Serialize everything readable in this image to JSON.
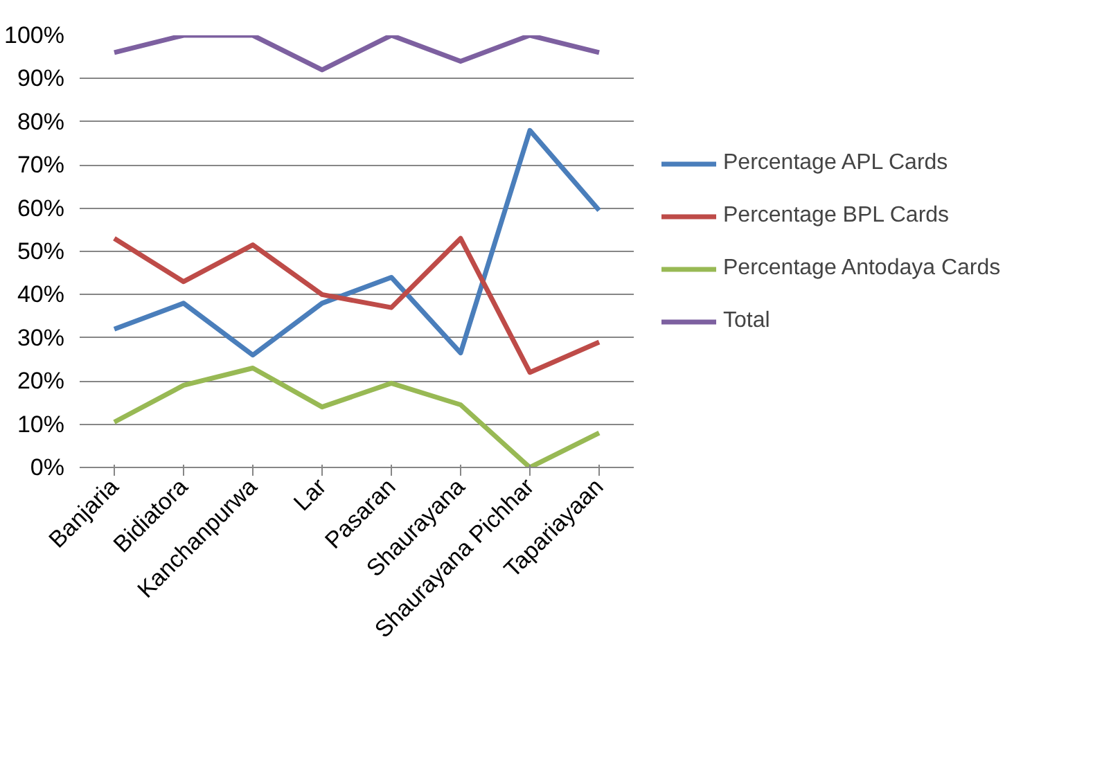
{
  "chart_data": {
    "type": "line",
    "categories": [
      "Banjaria",
      "Bidiatora",
      "Kanchanpurwa",
      "Lar",
      "Pasaran",
      "Shaurayana",
      "Shaurayana Pichhar",
      "Tapariayaan"
    ],
    "series": [
      {
        "name": "Percentage APL Cards",
        "color": "#4a7ebb",
        "values": [
          32,
          38,
          26,
          38,
          44,
          26.5,
          78,
          59.5
        ]
      },
      {
        "name": "Percentage BPL Cards",
        "color": "#be4b48",
        "values": [
          53,
          43,
          51.5,
          40,
          37,
          53,
          22,
          29
        ]
      },
      {
        "name": "Percentage Antodaya Cards",
        "color": "#98b954",
        "values": [
          10.5,
          19,
          23,
          14,
          19.5,
          14.5,
          0,
          8
        ]
      },
      {
        "name": "Total",
        "color": "#7d60a0",
        "values": [
          96,
          100,
          100,
          92,
          100,
          94,
          100,
          96
        ]
      }
    ],
    "ylim": [
      0,
      100
    ],
    "yticks": [
      {
        "value": 0,
        "label": "0%"
      },
      {
        "value": 10,
        "label": "10%"
      },
      {
        "value": 20,
        "label": "20%"
      },
      {
        "value": 30,
        "label": "30%"
      },
      {
        "value": 40,
        "label": "40%"
      },
      {
        "value": 50,
        "label": "50%"
      },
      {
        "value": 60,
        "label": "60%"
      },
      {
        "value": 70,
        "label": "70%"
      },
      {
        "value": 80,
        "label": "80%"
      },
      {
        "value": 90,
        "label": "90%"
      },
      {
        "value": 100,
        "label": "100%"
      }
    ],
    "grid": "y",
    "legend": "right",
    "marker": "none",
    "line_style": "solid"
  }
}
